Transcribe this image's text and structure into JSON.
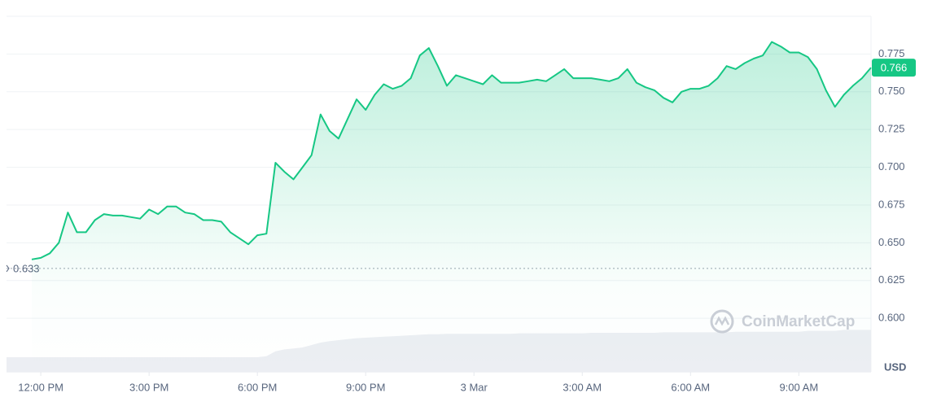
{
  "chart_data": {
    "type": "line",
    "x": [
      -0.25,
      0,
      0.25,
      0.5,
      0.75,
      1,
      1.25,
      1.5,
      1.75,
      2,
      2.25,
      2.5,
      2.75,
      3,
      3.25,
      3.5,
      3.75,
      4,
      4.25,
      4.5,
      4.75,
      5,
      5.25,
      5.5,
      5.75,
      6,
      6.25,
      6.5,
      6.75,
      7,
      7.25,
      7.5,
      7.75,
      8,
      8.25,
      8.5,
      8.75,
      9,
      9.25,
      9.5,
      9.75,
      10,
      10.25,
      10.5,
      10.75,
      11,
      11.25,
      11.5,
      11.75,
      12,
      12.25,
      12.5,
      12.75,
      13,
      13.25,
      13.5,
      13.75,
      14,
      14.25,
      14.5,
      14.75,
      15,
      15.25,
      15.5,
      15.75,
      16,
      16.25,
      16.5,
      16.75,
      17,
      17.25,
      17.5,
      17.75,
      18,
      18.25,
      18.5,
      18.75,
      19,
      19.25,
      19.5,
      19.75,
      20,
      20.25,
      20.5,
      20.75,
      21,
      21.25,
      21.5,
      21.75,
      22,
      22.25,
      22.5,
      22.75,
      23
    ],
    "series": [
      {
        "color": "#16c784",
        "values": [
          0.639,
          0.64,
          0.643,
          0.65,
          0.67,
          0.657,
          0.657,
          0.665,
          0.669,
          0.668,
          0.668,
          0.667,
          0.666,
          0.672,
          0.669,
          0.674,
          0.674,
          0.67,
          0.669,
          0.665,
          0.665,
          0.664,
          0.657,
          0.653,
          0.649,
          0.655,
          0.656,
          0.703,
          0.697,
          0.692,
          0.7,
          0.708,
          0.735,
          0.724,
          0.719,
          0.732,
          0.745,
          0.738,
          0.748,
          0.755,
          0.752,
          0.754,
          0.759,
          0.774,
          0.779,
          0.767,
          0.754,
          0.761,
          0.759,
          0.757,
          0.755,
          0.761,
          0.756,
          0.756,
          0.756,
          0.757,
          0.758,
          0.757,
          0.761,
          0.765,
          0.759,
          0.759,
          0.759,
          0.758,
          0.757,
          0.759,
          0.765,
          0.756,
          0.753,
          0.751,
          0.746,
          0.743,
          0.75,
          0.752,
          0.752,
          0.754,
          0.759,
          0.767,
          0.765,
          0.769,
          0.772,
          0.774,
          0.783,
          0.78,
          0.776,
          0.776,
          0.773,
          0.765,
          0.751,
          0.74,
          0.748,
          0.754,
          0.759,
          0.766
        ]
      }
    ],
    "volume": [
      30,
      30,
      30,
      30,
      30,
      30,
      30,
      30,
      30,
      30,
      30,
      30,
      30,
      30,
      30,
      30,
      30,
      30,
      30,
      30,
      30,
      30,
      30,
      30,
      30,
      30,
      32,
      42,
      46,
      48,
      50,
      55,
      60,
      63,
      65,
      67,
      69,
      70,
      71,
      72,
      73,
      74,
      75,
      76,
      77,
      77,
      78,
      78,
      78,
      78,
      78,
      78,
      78,
      78,
      79,
      79,
      79,
      79,
      79,
      79,
      79,
      79,
      80,
      80,
      80,
      80,
      80,
      80,
      80,
      80,
      81,
      81,
      81,
      81,
      81,
      81,
      81,
      81,
      82,
      82,
      82,
      82,
      82,
      82,
      82,
      82,
      84,
      84,
      84,
      84,
      86,
      86,
      86,
      86
    ],
    "volume_lim": [
      0,
      100
    ],
    "xlim": [
      -0.95,
      23.0
    ],
    "xticks": [
      {
        "value": 0,
        "label": "12:00 PM"
      },
      {
        "value": 3,
        "label": "3:00 PM"
      },
      {
        "value": 6,
        "label": "6:00 PM"
      },
      {
        "value": 9,
        "label": "9:00 PM"
      },
      {
        "value": 12,
        "label": "3 Mar"
      },
      {
        "value": 15,
        "label": "3:00 AM"
      },
      {
        "value": 18,
        "label": "6:00 AM"
      },
      {
        "value": 21,
        "label": "9:00 AM"
      }
    ],
    "ylim": [
      0.5645,
      0.8
    ],
    "yticks": [
      {
        "value": 0.6,
        "label": "0.600"
      },
      0.625,
      {
        "value": 0.65,
        "label": "0.650"
      },
      0.675,
      {
        "value": 0.7,
        "label": "0.700"
      },
      0.725,
      {
        "value": 0.75,
        "label": "0.750"
      },
      0.775
    ],
    "grid": true,
    "open_price": 0.633,
    "last_price": 0.766,
    "y_unit": "USD",
    "watermark": "CoinMarketCap"
  }
}
